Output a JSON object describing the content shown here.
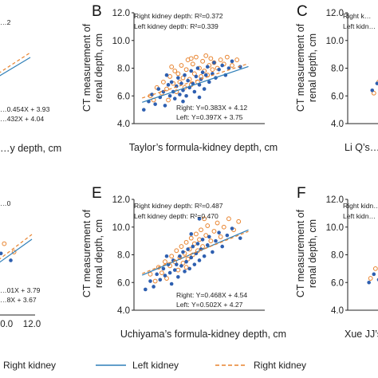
{
  "colors": {
    "left": "#2e5fb0",
    "right": "#e8842f",
    "left_line": "#2f7fb8",
    "right_line": "#e8842f"
  },
  "legend": {
    "left_label": "Left kidney",
    "right_label": "Right kidney"
  },
  "chart_data": [
    {
      "type": "scatter",
      "panel": "",
      "xlabel": "…y depth, cm",
      "ylabel": "",
      "annotations": [
        "…2"
      ],
      "equations": [
        "…0.454X + 3.93",
        "…432X + 4.04"
      ],
      "xticks": [],
      "yticks": [],
      "series": [
        {
          "name": "Left kidney",
          "values": [
            [
              6.5,
              7.2
            ],
            [
              7.0,
              7.6
            ],
            [
              7.4,
              7.1
            ],
            [
              7.8,
              7.5
            ],
            [
              8.2,
              7.0
            ],
            [
              8.6,
              7.9
            ],
            [
              9.0,
              7.4
            ],
            [
              9.3,
              8.1
            ]
          ]
        },
        {
          "name": "Right kidney",
          "values": [
            [
              6.3,
              7.0
            ],
            [
              6.9,
              7.8
            ],
            [
              7.3,
              7.4
            ],
            [
              7.7,
              8.0
            ],
            [
              8.1,
              7.6
            ],
            [
              8.5,
              8.3
            ],
            [
              8.9,
              7.8
            ],
            [
              9.2,
              8.5
            ]
          ]
        }
      ]
    },
    {
      "type": "scatter",
      "panel": "B",
      "xlabel": "Taylor’s formula-kidney depth, cm",
      "ylabel": "CT measurement of renal depth, cm",
      "xlim": [
        4.0,
        12.0
      ],
      "ylim": [
        4.0,
        12.0
      ],
      "xticks": [
        "4.0",
        "6.0",
        "8.0",
        "10.0",
        "12.0"
      ],
      "yticks": [
        "4.0",
        "6.0",
        "8.0",
        "10.0",
        "12.0"
      ],
      "annotations": [
        "Right kidney depth: R²=0.372",
        "Left kidney depth: R²=0.339"
      ],
      "equations": [
        "Right: Y=0.383X + 4.12",
        "Left: Y=0.397X + 3.75"
      ],
      "fits": {
        "left": [
          0.397,
          3.75
        ],
        "right": [
          0.383,
          4.12
        ],
        "x_range": [
          4.5,
          11.0
        ]
      },
      "series": [
        {
          "name": "Left kidney",
          "values": [
            [
              4.6,
              5.0
            ],
            [
              4.9,
              5.6
            ],
            [
              5.1,
              6.1
            ],
            [
              5.3,
              5.4
            ],
            [
              5.5,
              6.5
            ],
            [
              5.6,
              5.9
            ],
            [
              5.8,
              6.3
            ],
            [
              5.9,
              5.3
            ],
            [
              6.1,
              6.8
            ],
            [
              6.2,
              6.0
            ],
            [
              6.3,
              7.0
            ],
            [
              6.4,
              6.3
            ],
            [
              6.5,
              5.8
            ],
            [
              6.6,
              6.7
            ],
            [
              6.7,
              7.3
            ],
            [
              6.8,
              6.1
            ],
            [
              6.9,
              6.9
            ],
            [
              7.0,
              6.4
            ],
            [
              7.1,
              7.5
            ],
            [
              7.2,
              6.0
            ],
            [
              7.3,
              7.1
            ],
            [
              7.4,
              6.6
            ],
            [
              7.5,
              7.8
            ],
            [
              7.6,
              6.9
            ],
            [
              7.7,
              6.3
            ],
            [
              7.8,
              7.4
            ],
            [
              7.9,
              8.0
            ],
            [
              8.0,
              6.8
            ],
            [
              8.1,
              7.2
            ],
            [
              8.2,
              7.7
            ],
            [
              8.3,
              6.5
            ],
            [
              8.4,
              7.5
            ],
            [
              8.5,
              8.1
            ],
            [
              8.6,
              7.0
            ],
            [
              8.8,
              7.6
            ],
            [
              8.9,
              8.4
            ],
            [
              9.0,
              7.3
            ],
            [
              9.2,
              7.9
            ],
            [
              9.4,
              8.2
            ],
            [
              9.6,
              7.5
            ],
            [
              9.8,
              8.0
            ],
            [
              10.0,
              8.5
            ],
            [
              10.5,
              8.1
            ],
            [
              6.0,
              7.5
            ],
            [
              7.0,
              5.6
            ],
            [
              8.0,
              5.9
            ]
          ]
        },
        {
          "name": "Right kidney",
          "values": [
            [
              5.0,
              6.0
            ],
            [
              5.2,
              5.7
            ],
            [
              5.4,
              6.6
            ],
            [
              5.7,
              6.2
            ],
            [
              5.8,
              7.0
            ],
            [
              6.0,
              6.5
            ],
            [
              6.1,
              5.7
            ],
            [
              6.2,
              7.4
            ],
            [
              6.4,
              6.9
            ],
            [
              6.5,
              7.8
            ],
            [
              6.6,
              6.3
            ],
            [
              6.7,
              7.6
            ],
            [
              6.8,
              7.0
            ],
            [
              6.9,
              8.2
            ],
            [
              7.0,
              7.3
            ],
            [
              7.1,
              6.6
            ],
            [
              7.2,
              7.9
            ],
            [
              7.3,
              8.6
            ],
            [
              7.4,
              7.2
            ],
            [
              7.5,
              6.8
            ],
            [
              7.6,
              8.3
            ],
            [
              7.7,
              7.6
            ],
            [
              7.8,
              8.8
            ],
            [
              7.9,
              7.0
            ],
            [
              8.0,
              8.0
            ],
            [
              8.1,
              7.4
            ],
            [
              8.2,
              8.5
            ],
            [
              8.3,
              7.8
            ],
            [
              8.4,
              8.9
            ],
            [
              8.5,
              7.5
            ],
            [
              8.6,
              8.2
            ],
            [
              8.7,
              8.7
            ],
            [
              8.8,
              7.9
            ],
            [
              8.9,
              8.4
            ],
            [
              9.1,
              8.0
            ],
            [
              9.3,
              8.6
            ],
            [
              9.5,
              8.3
            ],
            [
              9.7,
              8.8
            ],
            [
              10.0,
              8.2
            ],
            [
              10.3,
              8.6
            ],
            [
              6.3,
              8.1
            ],
            [
              7.5,
              8.7
            ]
          ]
        }
      ]
    },
    {
      "type": "scatter",
      "panel": "C",
      "xlabel": "Li Q’s…",
      "ylabel": "CT measurement of renal depth, cm",
      "annotations": [
        "Right k…",
        "Left kidn…"
      ],
      "equations": [],
      "xticks": [
        "4.0"
      ],
      "yticks": [
        "4.0",
        "6.0",
        "8.0",
        "10.0",
        "12.0"
      ],
      "series": [
        {
          "name": "Left kidney",
          "values": [
            [
              5.5,
              6.4
            ],
            [
              5.8,
              6.9
            ],
            [
              6.0,
              7.2
            ],
            [
              6.2,
              6.6
            ],
            [
              6.4,
              7.4
            ]
          ]
        },
        {
          "name": "Right kidney",
          "values": [
            [
              5.6,
              6.2
            ],
            [
              5.9,
              7.0
            ],
            [
              6.1,
              6.5
            ],
            [
              6.3,
              7.1
            ],
            [
              6.5,
              6.8
            ]
          ]
        }
      ]
    },
    {
      "type": "scatter",
      "panel": "",
      "xlabel": "",
      "ylabel": "",
      "annotations": [
        "…0"
      ],
      "equations": [
        "…01X + 3.79",
        "…8X + 3.67"
      ],
      "xticks": [
        "10.0",
        "12.0"
      ],
      "yticks": [],
      "series": [
        {
          "name": "Left kidney",
          "values": [
            [
              8.0,
              7.0
            ],
            [
              8.8,
              7.4
            ],
            [
              9.6,
              7.9
            ],
            [
              10.4,
              8.1
            ],
            [
              11.0,
              7.6
            ]
          ]
        },
        {
          "name": "Right kidney",
          "values": [
            [
              8.3,
              7.3
            ],
            [
              9.0,
              8.0
            ],
            [
              9.8,
              8.4
            ],
            [
              10.6,
              8.8
            ],
            [
              11.2,
              8.2
            ]
          ]
        }
      ]
    },
    {
      "type": "scatter",
      "panel": "E",
      "xlabel": "Uchiyama’s formula-kidney depth, cm",
      "ylabel": "CT measurement of renal depth, cm",
      "xlim": [
        4.0,
        12.0
      ],
      "ylim": [
        4.0,
        12.0
      ],
      "xticks": [
        "4.0",
        "6.0",
        "8.0",
        "10.0",
        "12.0"
      ],
      "yticks": [
        "4.0",
        "6.0",
        "8.0",
        "10.0",
        "12.0"
      ],
      "annotations": [
        "Right kidney depth: R²=0.487",
        "Left kidney depth: R²=0.470"
      ],
      "equations": [
        "Right: Y=0.468X + 4.54",
        "Left: Y=0.502X + 4.27"
      ],
      "fits": {
        "left": [
          0.502,
          4.27
        ],
        "right": [
          0.468,
          4.54
        ],
        "x_range": [
          4.5,
          11.0
        ]
      },
      "series": [
        {
          "name": "Left kidney",
          "values": [
            [
              4.7,
              5.5
            ],
            [
              5.0,
              6.1
            ],
            [
              5.2,
              5.7
            ],
            [
              5.4,
              6.6
            ],
            [
              5.6,
              6.2
            ],
            [
              5.8,
              7.0
            ],
            [
              5.9,
              6.5
            ],
            [
              6.1,
              7.3
            ],
            [
              6.2,
              6.7
            ],
            [
              6.3,
              5.9
            ],
            [
              6.4,
              7.6
            ],
            [
              6.5,
              6.9
            ],
            [
              6.6,
              7.3
            ],
            [
              6.7,
              6.4
            ],
            [
              6.8,
              7.9
            ],
            [
              6.9,
              7.2
            ],
            [
              7.0,
              8.2
            ],
            [
              7.1,
              6.8
            ],
            [
              7.2,
              7.5
            ],
            [
              7.3,
              8.4
            ],
            [
              7.4,
              7.0
            ],
            [
              7.5,
              7.8
            ],
            [
              7.6,
              8.6
            ],
            [
              7.7,
              7.3
            ],
            [
              7.8,
              8.1
            ],
            [
              7.9,
              8.8
            ],
            [
              8.0,
              7.6
            ],
            [
              8.1,
              8.4
            ],
            [
              8.2,
              9.1
            ],
            [
              8.3,
              7.9
            ],
            [
              8.5,
              8.7
            ],
            [
              8.6,
              9.3
            ],
            [
              8.8,
              8.2
            ],
            [
              9.0,
              9.0
            ],
            [
              9.2,
              9.6
            ],
            [
              9.4,
              8.6
            ],
            [
              9.7,
              9.4
            ],
            [
              10.0,
              9.9
            ],
            [
              10.5,
              9.2
            ],
            [
              7.5,
              9.5
            ],
            [
              8.0,
              10.6
            ],
            [
              6.0,
              7.9
            ]
          ]
        },
        {
          "name": "Right kidney",
          "values": [
            [
              5.0,
              6.6
            ],
            [
              5.3,
              6.1
            ],
            [
              5.5,
              7.1
            ],
            [
              5.7,
              6.7
            ],
            [
              5.9,
              7.5
            ],
            [
              6.0,
              6.3
            ],
            [
              6.2,
              7.2
            ],
            [
              6.3,
              7.9
            ],
            [
              6.5,
              7.5
            ],
            [
              6.6,
              8.3
            ],
            [
              6.7,
              6.9
            ],
            [
              6.8,
              7.8
            ],
            [
              6.9,
              8.6
            ],
            [
              7.0,
              7.4
            ],
            [
              7.1,
              8.1
            ],
            [
              7.2,
              8.9
            ],
            [
              7.3,
              7.7
            ],
            [
              7.4,
              8.4
            ],
            [
              7.5,
              9.2
            ],
            [
              7.6,
              8.0
            ],
            [
              7.7,
              8.8
            ],
            [
              7.8,
              9.5
            ],
            [
              7.9,
              8.3
            ],
            [
              8.0,
              9.1
            ],
            [
              8.1,
              9.8
            ],
            [
              8.2,
              8.6
            ],
            [
              8.4,
              9.4
            ],
            [
              8.5,
              10.1
            ],
            [
              8.7,
              9.0
            ],
            [
              8.9,
              9.7
            ],
            [
              9.1,
              10.3
            ],
            [
              9.3,
              9.3
            ],
            [
              9.5,
              10.0
            ],
            [
              9.8,
              10.6
            ],
            [
              10.1,
              9.8
            ],
            [
              10.4,
              10.4
            ],
            [
              8.3,
              10.6
            ],
            [
              7.2,
              7.1
            ]
          ]
        }
      ]
    },
    {
      "type": "scatter",
      "panel": "F",
      "xlabel": "Xue JJ’s…",
      "ylabel": "CT measurement of renal depth, cm",
      "annotations": [
        "Right kidn…",
        "Left kidn…"
      ],
      "equations": [],
      "xticks": [
        "4.0",
        "6.0"
      ],
      "yticks": [
        "4.0",
        "6.0",
        "8.0",
        "10.0",
        "12.0"
      ],
      "series": [
        {
          "name": "Left kidney",
          "values": [
            [
              5.3,
              6.0
            ],
            [
              5.6,
              6.6
            ],
            [
              5.9,
              6.2
            ],
            [
              6.2,
              7.0
            ],
            [
              6.4,
              6.7
            ]
          ]
        },
        {
          "name": "Right kidney",
          "values": [
            [
              5.4,
              6.3
            ],
            [
              5.7,
              7.0
            ],
            [
              6.0,
              6.5
            ],
            [
              6.3,
              7.4
            ],
            [
              6.5,
              6.9
            ]
          ]
        }
      ]
    }
  ]
}
